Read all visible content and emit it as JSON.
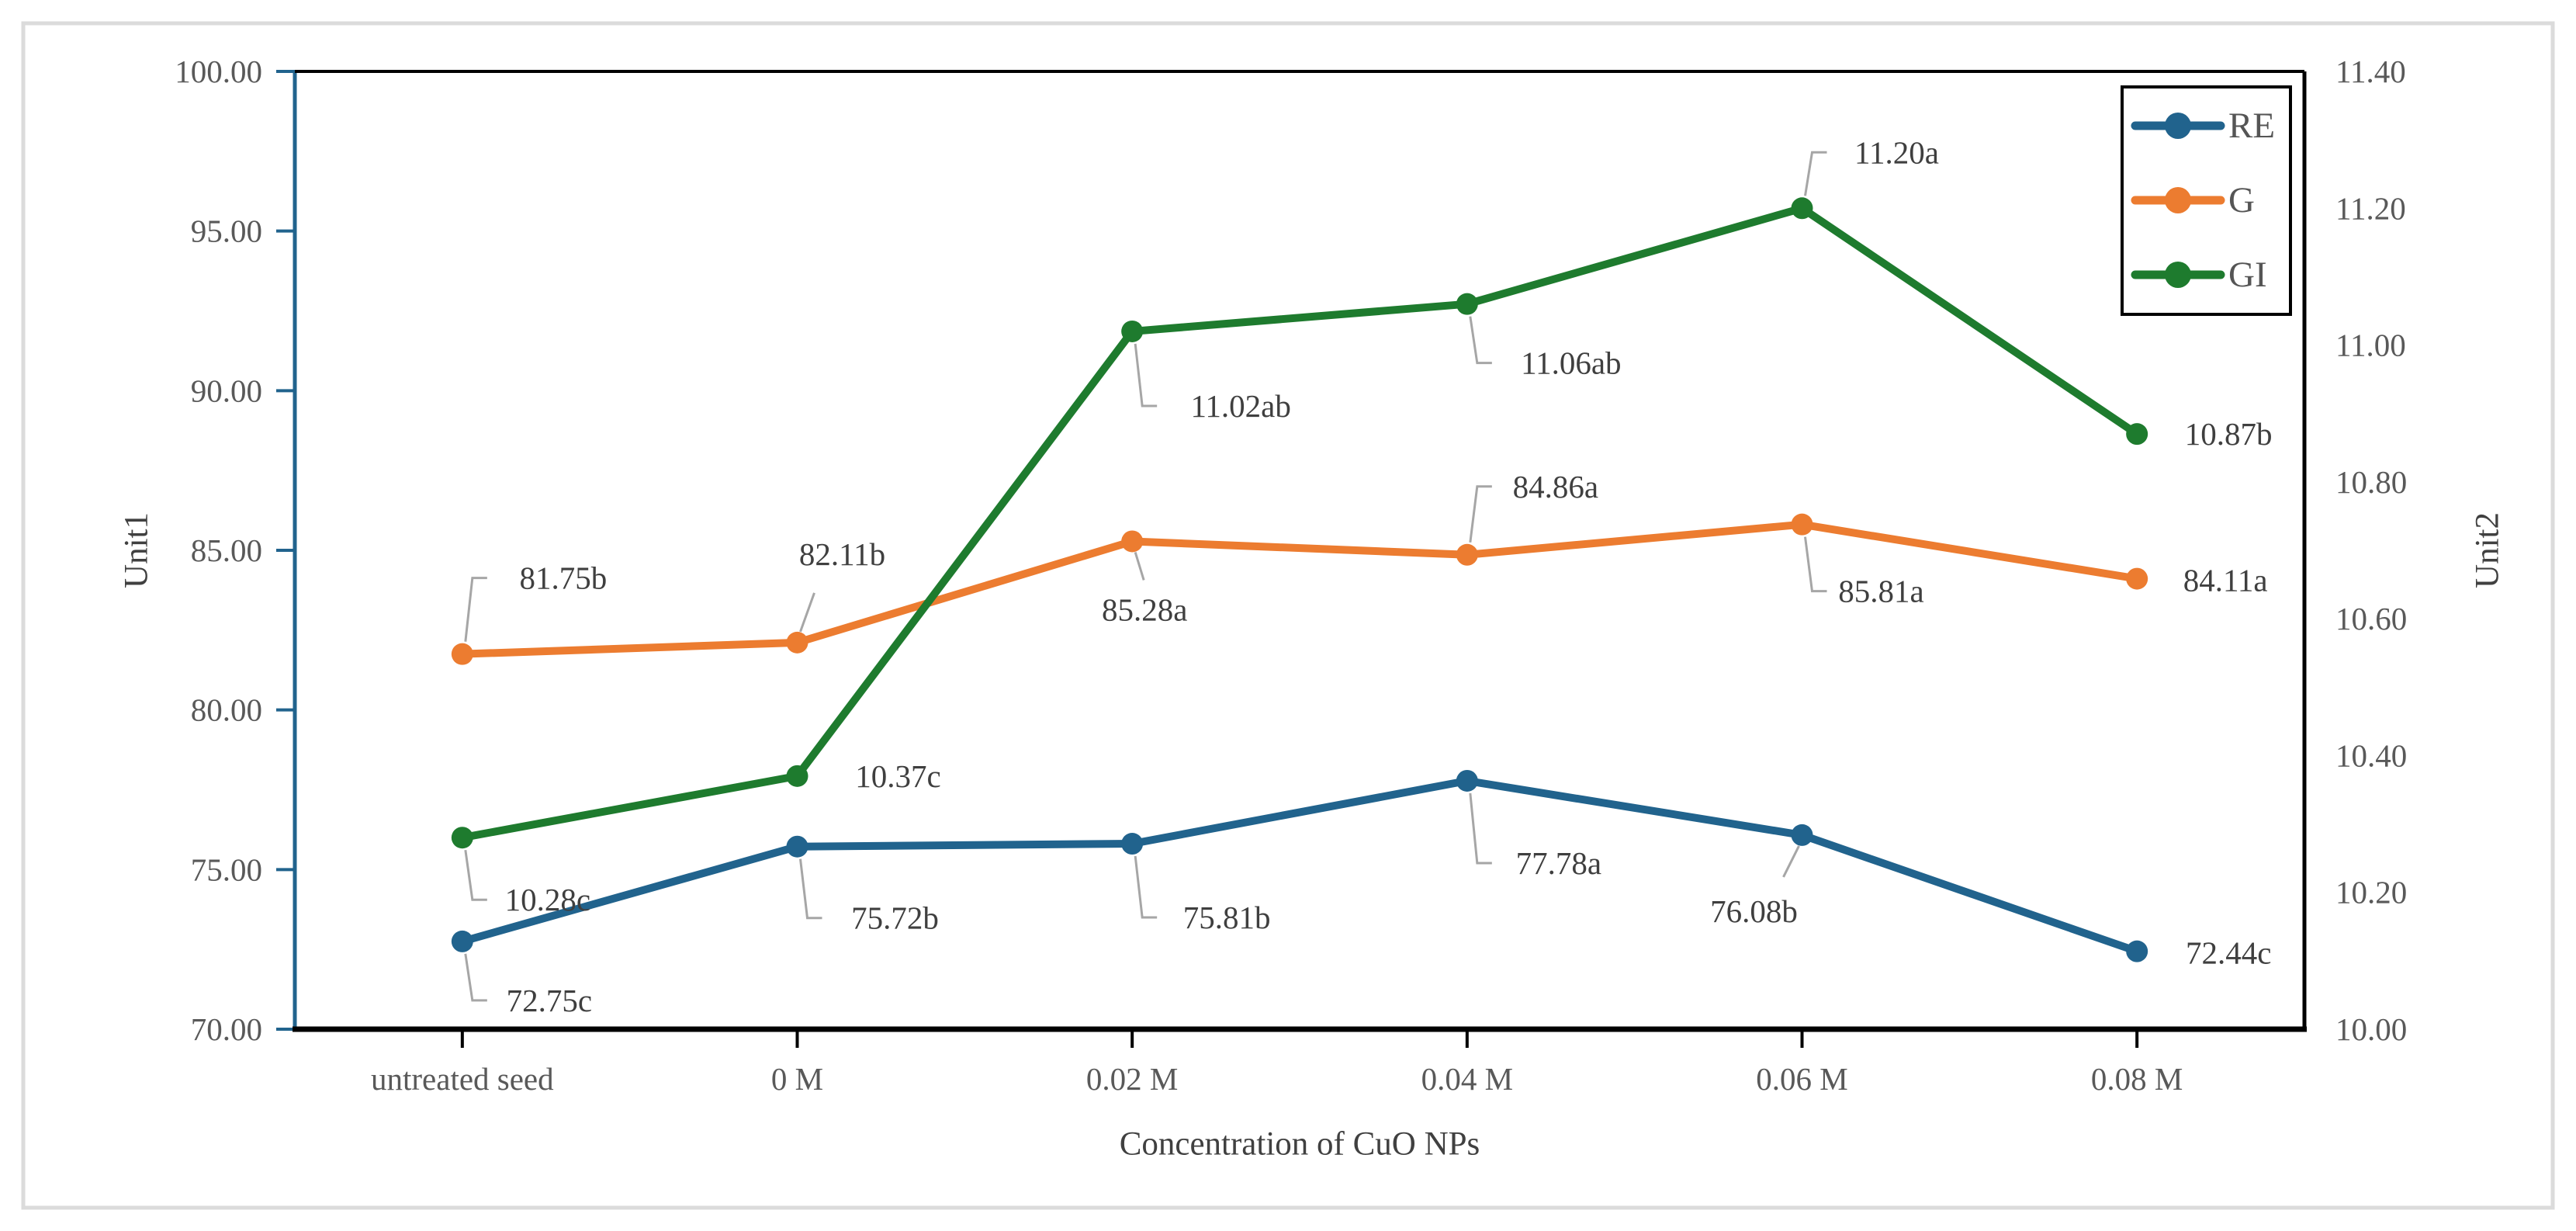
{
  "figure": {
    "frame_color": "#DBDBDB",
    "background": "#FFFFFF"
  },
  "chart_data": {
    "type": "line",
    "categories": [
      "untreated seed",
      "0 M",
      "0.02 M",
      "0.04 M",
      "0.06 M",
      "0.08 M"
    ],
    "x_axis": {
      "title": "Concentration of CuO NPs"
    },
    "y_axis_left": {
      "title": "Unit1",
      "min": 70,
      "max": 100,
      "step": 5,
      "tick_labels": [
        "70.00",
        "75.00",
        "80.00",
        "85.00",
        "90.00",
        "95.00",
        "100.00"
      ],
      "axis_color": "#21638D"
    },
    "y_axis_right": {
      "title": "Unit2",
      "min": 10,
      "max": 11.4,
      "step": 0.2,
      "tick_labels": [
        "10.00",
        "10.20",
        "10.40",
        "10.60",
        "10.80",
        "11.00",
        "11.20",
        "11.40"
      ],
      "axis_color": "#000000"
    },
    "legend": {
      "position": "top-right-inside",
      "entries": [
        {
          "label": "RE",
          "color": "#21638D"
        },
        {
          "label": "G",
          "color": "#EC7C30"
        },
        {
          "label": "GI",
          "color": "#1E7B2E"
        }
      ]
    },
    "series": [
      {
        "name": "RE",
        "axis": "left",
        "color": "#21638D",
        "values": [
          72.75,
          75.72,
          75.81,
          77.78,
          76.08,
          72.44
        ],
        "point_labels": [
          "72.75c",
          "75.72b",
          "75.81b",
          "77.78a",
          "76.08b",
          "72.44c"
        ]
      },
      {
        "name": "G",
        "axis": "left",
        "color": "#EC7C30",
        "values": [
          81.75,
          82.11,
          85.28,
          84.86,
          85.81,
          84.11
        ],
        "point_labels": [
          "81.75b",
          "82.11b",
          "85.28a",
          "84.86a",
          "85.81a",
          "84.11a"
        ]
      },
      {
        "name": "GI",
        "axis": "right",
        "color": "#1E7B2E",
        "values": [
          10.28,
          10.37,
          11.02,
          11.06,
          11.2,
          10.87
        ],
        "point_labels": [
          "10.28c",
          "10.37c",
          "11.02ab",
          "11.06ab",
          "11.20a",
          "10.87b"
        ]
      }
    ],
    "styles": {
      "tick_label_color": "#595959",
      "data_label_color": "#3F3F3F",
      "axis_title_color": "#404040",
      "legend_label_color": "#555555",
      "leader_color": "#A6A6A6",
      "plot_border_color": "#000000"
    }
  }
}
